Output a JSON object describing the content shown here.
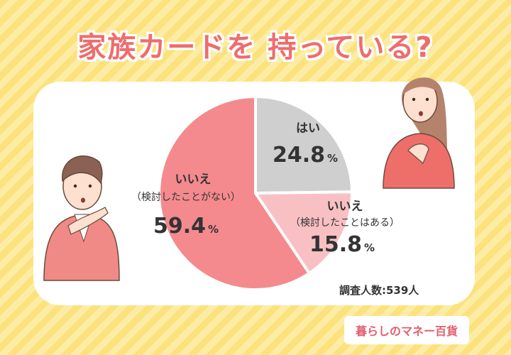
{
  "title": "家族カードを 持っている?",
  "sample_size": "調査人数:539人",
  "logo_text": "暮らしのマネー百貨",
  "colors": {
    "background": "#fbe27c",
    "title": "#ee6d6d",
    "slice_yes": "#cfcfcf",
    "slice_no_considered": "#f9c0c4",
    "slice_no_not_considered": "#f48a8e"
  },
  "chart_data": {
    "type": "pie",
    "title": "家族カードを 持っている?",
    "slices": [
      {
        "label": "はい",
        "sublabel": "",
        "value": 24.8,
        "value_text": "24.8",
        "unit": "%"
      },
      {
        "label": "いいえ",
        "sublabel": "（検討したことはある）",
        "value": 15.8,
        "value_text": "15.8",
        "unit": "%"
      },
      {
        "label": "いいえ",
        "sublabel": "（検討したことがない）",
        "value": 59.4,
        "value_text": "59.4",
        "unit": "%"
      }
    ]
  }
}
